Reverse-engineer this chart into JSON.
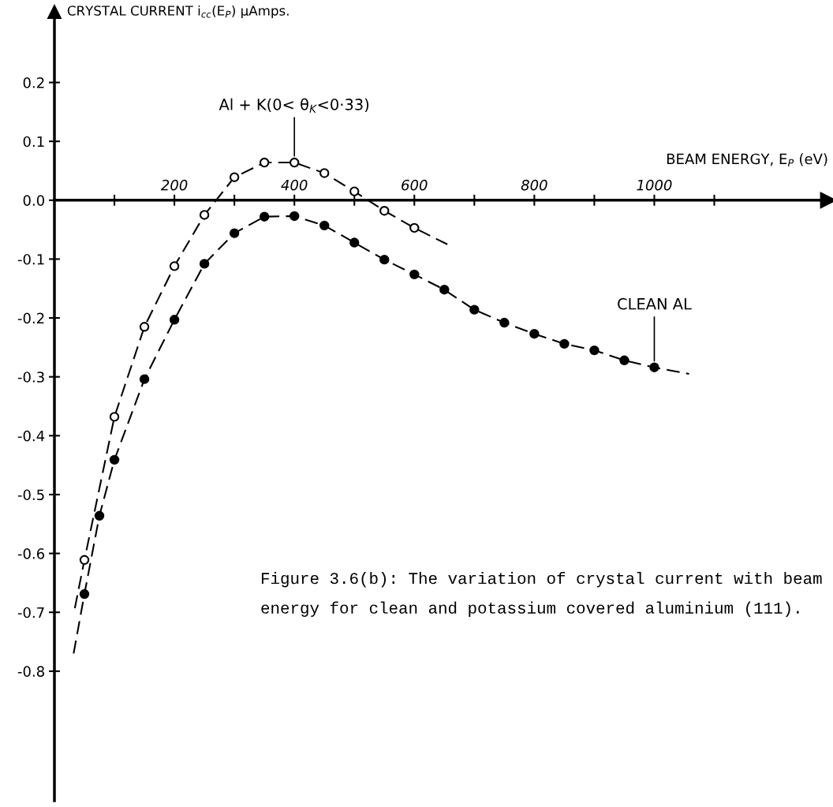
{
  "chart_data": {
    "type": "scatter",
    "xlabel": "BEAM ENERGY, E$_{P}$ (eV)",
    "ylabel": "CRYSTAL CURRENT i$_{cc}$(E$_{P}$) μAmps.",
    "xlim": [
      0,
      1290
    ],
    "ylim": [
      -1.02,
      0.32
    ],
    "xticks": [
      {
        "value": 100,
        "label": null
      },
      200,
      {
        "value": 300,
        "label": null
      },
      400,
      {
        "value": 500,
        "label": null
      },
      600,
      {
        "value": 700,
        "label": null
      },
      800,
      {
        "value": 900,
        "label": null
      },
      1000,
      {
        "value": 1100,
        "label": null
      }
    ],
    "yticks": [
      0.2,
      0.1,
      {
        "value": 0,
        "label": "0.0"
      },
      -0.1,
      -0.2,
      -0.3,
      -0.4,
      -0.5,
      -0.6,
      -0.7,
      -0.8
    ],
    "grid": false,
    "series": [
      {
        "type": "line",
        "color": "#000000",
        "marker": "none",
        "line_style": "dashed",
        "x": [
          34,
          50,
          100,
          150,
          200,
          250,
          300,
          350,
          400,
          450,
          500,
          550,
          600,
          655
        ],
        "values": [
          -0.693,
          -0.611,
          -0.368,
          -0.215,
          -0.112,
          -0.025,
          0.039,
          0.064,
          0.064,
          0.046,
          0.015,
          -0.018,
          -0.047,
          -0.075
        ]
      },
      {
        "type": "line",
        "color": "#000000",
        "marker": "none",
        "line_style": "dashed",
        "x": [
          32,
          50,
          75,
          100,
          150,
          200,
          250,
          300,
          350,
          400,
          450,
          500,
          550,
          600,
          650,
          700,
          750,
          800,
          850,
          900,
          950,
          1000,
          1058
        ],
        "values": [
          -0.77,
          -0.669,
          -0.536,
          -0.441,
          -0.304,
          -0.203,
          -0.108,
          -0.056,
          -0.028,
          -0.027,
          -0.043,
          -0.072,
          -0.101,
          -0.126,
          -0.152,
          -0.186,
          -0.208,
          -0.227,
          -0.244,
          -0.255,
          -0.272,
          -0.284,
          -0.295
        ]
      },
      {
        "color": "#ffffff",
        "marker": "circle",
        "x": [
          50,
          100,
          150,
          200,
          250,
          300,
          350,
          400,
          450,
          500,
          550,
          600
        ],
        "values": [
          -0.611,
          -0.368,
          -0.215,
          -0.112,
          -0.025,
          0.039,
          0.064,
          0.064,
          0.046,
          0.015,
          -0.018,
          -0.047
        ]
      },
      {
        "color": "#000000",
        "marker": "circle",
        "x": [
          50,
          75,
          100,
          150,
          200,
          250,
          300,
          350,
          400,
          450,
          500,
          550,
          600,
          650,
          700,
          750,
          800,
          850,
          900,
          950,
          1000
        ],
        "values": [
          -0.669,
          -0.536,
          -0.441,
          -0.304,
          -0.203,
          -0.108,
          -0.056,
          -0.028,
          -0.027,
          -0.043,
          -0.072,
          -0.101,
          -0.126,
          -0.152,
          -0.186,
          -0.208,
          -0.227,
          -0.244,
          -0.255,
          -0.272,
          -0.284
        ]
      }
    ],
    "annotations": [
      {
        "text": "Al + K(0< θ$_{K}$<0·33)",
        "x": 400,
        "y": 0.064
      },
      {
        "text": "CLEAN AL",
        "x": 1000,
        "y": -0.284
      },
      "Figure 3.6(b): The variation of crystal current with beam energy for clean and potassium covered aluminium (111)."
    ]
  }
}
